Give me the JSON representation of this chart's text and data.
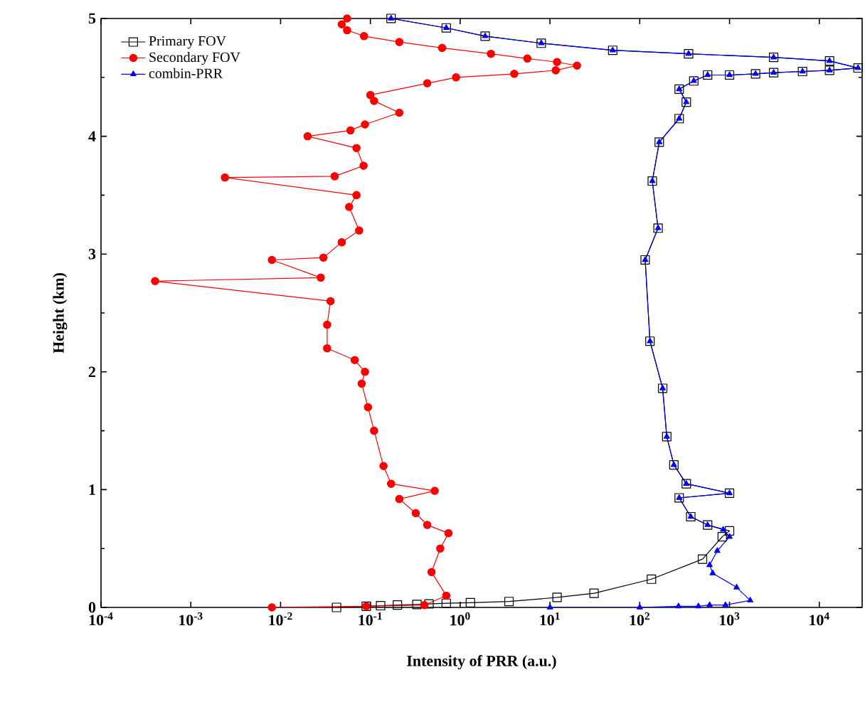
{
  "chart_data": {
    "type": "line",
    "xlabel": "Intensity of PRR (a.u.)",
    "ylabel": "Height (km)",
    "log": "x",
    "xlim": [
      0.0001,
      30000
    ],
    "ylim": [
      0,
      5
    ],
    "xticks": [
      {
        "value": 0.0001,
        "label": "10$^{-4}$"
      },
      {
        "value": 0.001,
        "label": "10$^{-3}$"
      },
      {
        "value": 0.01,
        "label": "10$^{-2}$"
      },
      {
        "value": 0.1,
        "label": "10$^{-1}$"
      },
      {
        "value": 1,
        "label": "10$^{0}$"
      },
      {
        "value": 10,
        "label": "10$^{1}$"
      },
      {
        "value": 100,
        "label": "10$^{2}$"
      },
      {
        "value": 1000,
        "label": "10$^{3}$"
      },
      {
        "value": 10000,
        "label": "10$^{4}$"
      }
    ],
    "yticks": [
      0,
      1,
      2,
      3,
      4,
      5
    ],
    "grid": false,
    "legend": "top left",
    "series": [
      {
        "name": "Primary FOV",
        "color": "#000000",
        "marker": "square",
        "x": [
          0.042,
          0.09,
          0.13,
          0.2,
          0.33,
          0.45,
          0.7,
          1.3,
          3.5,
          12,
          31,
          135,
          500,
          830,
          1000,
          570,
          370,
          275,
          1000,
          330,
          240,
          200,
          180,
          130,
          115,
          160,
          138,
          165,
          275,
          330,
          275,
          400,
          570,
          1000,
          1950,
          3100,
          6500,
          13000,
          27000,
          13000,
          3100,
          350,
          50,
          8,
          1.9,
          0.7,
          0.17
        ],
        "values": [
          0.0,
          0.01,
          0.015,
          0.02,
          0.025,
          0.03,
          0.035,
          0.04,
          0.05,
          0.085,
          0.12,
          0.24,
          0.41,
          0.6,
          0.65,
          0.7,
          0.77,
          0.93,
          0.97,
          1.05,
          1.21,
          1.45,
          1.86,
          2.26,
          2.95,
          3.22,
          3.62,
          3.95,
          4.15,
          4.29,
          4.4,
          4.47,
          4.52,
          4.52,
          4.53,
          4.54,
          4.55,
          4.56,
          4.58,
          4.64,
          4.67,
          4.7,
          4.73,
          4.79,
          4.85,
          4.92,
          5.0
        ]
      },
      {
        "name": "Secondary FOV",
        "color": "#ff0000",
        "marker": "circle",
        "x": [
          0.008,
          0.09,
          0.4,
          0.7,
          0.48,
          0.6,
          0.74,
          0.43,
          0.32,
          0.21,
          0.52,
          0.17,
          0.14,
          0.11,
          0.094,
          0.08,
          0.087,
          0.067,
          0.033,
          0.033,
          0.036,
          0.0004,
          0.028,
          0.008,
          0.03,
          0.048,
          0.075,
          0.058,
          0.07,
          0.0024,
          0.04,
          0.084,
          0.07,
          0.02,
          0.06,
          0.087,
          0.21,
          0.11,
          0.1,
          0.43,
          0.9,
          4,
          11.6,
          20,
          12,
          5.6,
          2.2,
          0.63,
          0.21,
          0.085,
          0.055,
          0.048,
          0.055
        ],
        "values": [
          0.0,
          0.01,
          0.02,
          0.1,
          0.3,
          0.5,
          0.63,
          0.7,
          0.8,
          0.92,
          0.99,
          1.05,
          1.2,
          1.5,
          1.7,
          1.9,
          2.0,
          2.1,
          2.2,
          2.4,
          2.6,
          2.77,
          2.8,
          2.95,
          2.97,
          3.1,
          3.2,
          3.4,
          3.5,
          3.65,
          3.66,
          3.75,
          3.9,
          4.0,
          4.05,
          4.1,
          4.2,
          4.3,
          4.35,
          4.45,
          4.5,
          4.53,
          4.56,
          4.6,
          4.63,
          4.66,
          4.7,
          4.75,
          4.8,
          4.85,
          4.9,
          4.95,
          5.0
        ]
      },
      {
        "name": "combin-PRR",
        "color": "#0000ff",
        "marker": "triangle",
        "x": [
          10,
          100,
          270,
          450,
          600,
          900,
          1700,
          1200,
          650,
          600,
          730,
          1000,
          850,
          570,
          370,
          275,
          1000,
          330,
          240,
          200,
          180,
          130,
          115,
          160,
          138,
          165,
          275,
          330,
          275,
          400,
          570,
          1000,
          1950,
          3100,
          6500,
          13000,
          27000,
          13000,
          3100,
          350,
          50,
          8,
          1.9,
          0.7,
          0.17
        ],
        "values": [
          0.0,
          0.0,
          0.01,
          0.01,
          0.02,
          0.02,
          0.06,
          0.17,
          0.29,
          0.36,
          0.48,
          0.6,
          0.66,
          0.7,
          0.77,
          0.93,
          0.97,
          1.05,
          1.21,
          1.45,
          1.86,
          2.26,
          2.95,
          3.22,
          3.62,
          3.95,
          4.15,
          4.29,
          4.4,
          4.47,
          4.52,
          4.52,
          4.53,
          4.54,
          4.55,
          4.56,
          4.58,
          4.64,
          4.67,
          4.7,
          4.73,
          4.79,
          4.85,
          4.92,
          5.0
        ]
      }
    ]
  }
}
